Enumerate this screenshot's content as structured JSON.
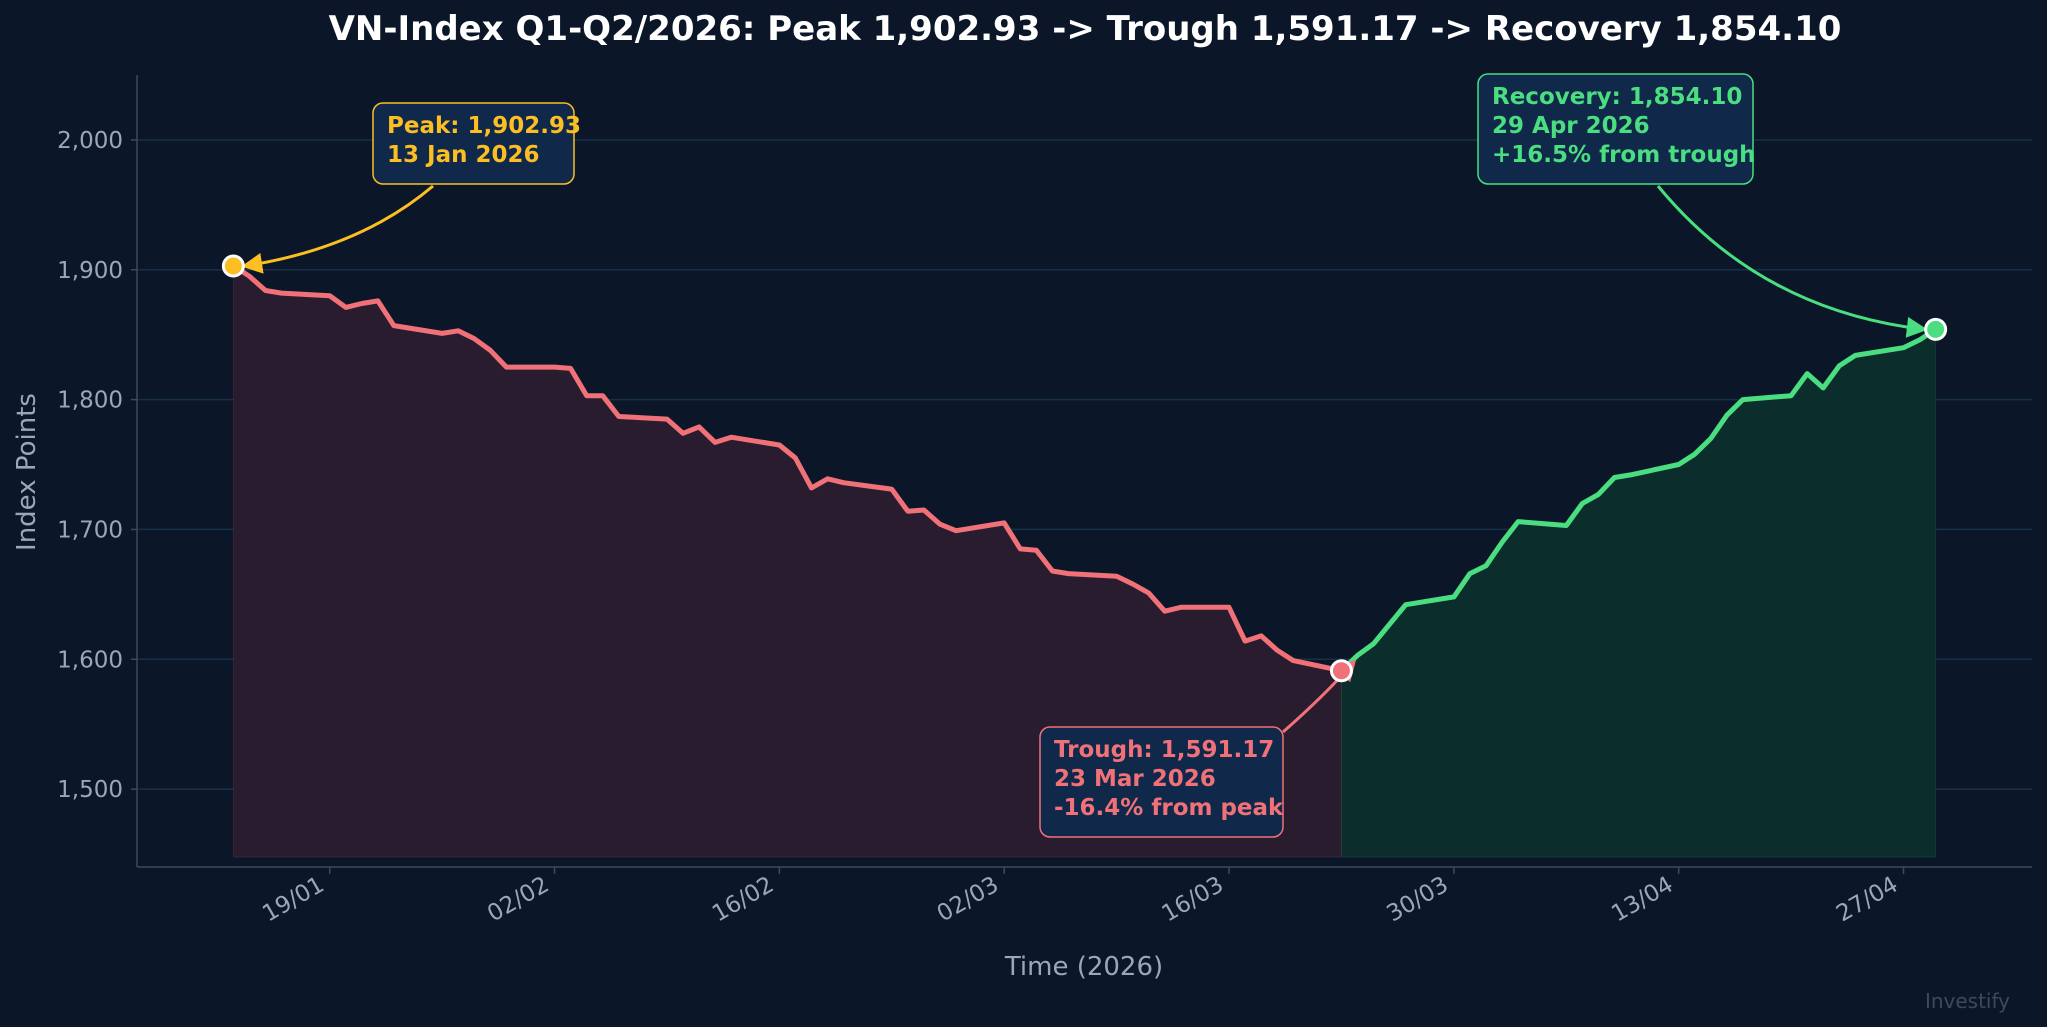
{
  "chart_data": {
    "type": "line",
    "title": "VN-Index Q1-Q2/2026: Peak 1,902.93 -> Trough 1,591.17 -> Recovery 1,854.10",
    "xlabel": "Time (2026)",
    "ylabel": "Index Points",
    "ylim": [
      1440,
      2050
    ],
    "xlim": [
      "2026-01-07",
      "2026-05-05"
    ],
    "grid": "horizontal",
    "y_ticks": [
      1500,
      1600,
      1700,
      1800,
      1900,
      2000
    ],
    "y_tick_labels": [
      "1,500",
      "1,600",
      "1,700",
      "1,800",
      "1,900",
      "2,000"
    ],
    "x_ticks": [
      "2026-01-19",
      "2026-02-02",
      "2026-02-16",
      "2026-03-02",
      "2026-03-16",
      "2026-03-30",
      "2026-04-13",
      "2026-04-27"
    ],
    "x_tick_labels": [
      "19/01",
      "02/02",
      "16/02",
      "02/03",
      "16/03",
      "30/03",
      "13/04",
      "27/04"
    ],
    "colors": {
      "decline": "#f07178",
      "recovery": "#4ade80",
      "peak": "#fbbf24",
      "background": "#0b1628",
      "grid": "#16304a"
    },
    "series": [
      {
        "segment": "decline",
        "x": [
          "2026-01-13",
          "2026-01-14",
          "2026-01-15",
          "2026-01-16",
          "2026-01-19",
          "2026-01-20",
          "2026-01-21",
          "2026-01-22",
          "2026-01-23",
          "2026-01-26",
          "2026-01-27",
          "2026-01-28",
          "2026-01-29",
          "2026-01-30",
          "2026-02-02",
          "2026-02-03",
          "2026-02-04",
          "2026-02-05",
          "2026-02-06",
          "2026-02-09",
          "2026-02-10",
          "2026-02-11",
          "2026-02-12",
          "2026-02-13",
          "2026-02-16",
          "2026-02-17",
          "2026-02-18",
          "2026-02-19",
          "2026-02-20",
          "2026-02-23",
          "2026-02-24",
          "2026-02-25",
          "2026-02-26",
          "2026-02-27",
          "2026-03-02",
          "2026-03-03",
          "2026-03-04",
          "2026-03-05",
          "2026-03-06",
          "2026-03-09",
          "2026-03-10",
          "2026-03-11",
          "2026-03-12",
          "2026-03-13",
          "2026-03-16",
          "2026-03-17",
          "2026-03-18",
          "2026-03-19",
          "2026-03-20",
          "2026-03-23"
        ],
        "y": [
          1902.93,
          1895,
          1884,
          1882,
          1880,
          1871,
          1874,
          1876,
          1857,
          1851,
          1853,
          1847,
          1838,
          1825,
          1825,
          1824,
          1803,
          1803,
          1787,
          1785,
          1774,
          1779,
          1767,
          1771,
          1765,
          1755,
          1732,
          1739,
          1736,
          1731,
          1714,
          1715,
          1704,
          1699,
          1705,
          1685,
          1684,
          1668,
          1666,
          1664,
          1658,
          1651,
          1637,
          1640,
          1640,
          1614,
          1618,
          1607,
          1599,
          1591.17
        ]
      },
      {
        "segment": "recovery",
        "x": [
          "2026-03-23",
          "2026-03-24",
          "2026-03-25",
          "2026-03-26",
          "2026-03-27",
          "2026-03-30",
          "2026-03-31",
          "2026-04-01",
          "2026-04-02",
          "2026-04-03",
          "2026-04-06",
          "2026-04-07",
          "2026-04-08",
          "2026-04-09",
          "2026-04-10",
          "2026-04-13",
          "2026-04-14",
          "2026-04-15",
          "2026-04-16",
          "2026-04-17",
          "2026-04-20",
          "2026-04-21",
          "2026-04-22",
          "2026-04-23",
          "2026-04-24",
          "2026-04-27",
          "2026-04-28",
          "2026-04-29"
        ],
        "y": [
          1591.17,
          1603,
          1612,
          1627,
          1642,
          1648,
          1666,
          1672,
          1690,
          1706,
          1703,
          1720,
          1727,
          1740,
          1742,
          1750,
          1758,
          1770,
          1788,
          1800,
          1803,
          1820,
          1809,
          1826,
          1834,
          1840,
          1846,
          1854.1
        ]
      }
    ],
    "annotations": [
      {
        "kind": "peak",
        "lines": [
          "Peak: 1,902.93",
          "13 Jan 2026"
        ],
        "x": "2026-01-13",
        "y": 1902.93,
        "color": "#fbbf24"
      },
      {
        "kind": "trough",
        "lines": [
          "Trough: 1,591.17",
          "23 Mar 2026",
          "-16.4% from peak"
        ],
        "x": "2026-03-23",
        "y": 1591.17,
        "color": "#f07178"
      },
      {
        "kind": "recovery",
        "lines": [
          "Recovery: 1,854.10",
          "29 Apr 2026",
          "+16.5% from trough"
        ],
        "x": "2026-04-29",
        "y": 1854.1,
        "color": "#4ade80"
      }
    ],
    "watermark": "Investify"
  }
}
